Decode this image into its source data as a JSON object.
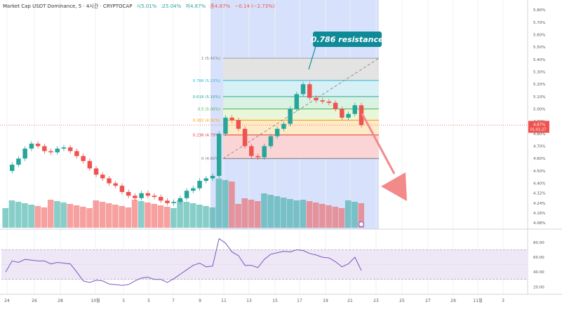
{
  "header": {
    "symbol": "Market Cap USDT Dominance, 5 · 4시간 · CRYPTOCAP",
    "open": "시5.01%",
    "high": "고5.04%",
    "low": "저4.87%",
    "close": "종4.87%",
    "change": "−0.14 (−2.73%)"
  },
  "annotation": {
    "label": "0.786 resistance",
    "color": "#0f8a97"
  },
  "price_tag": {
    "value": "4.87%",
    "countdown": "01:01:27",
    "color": "#ef5350"
  },
  "colors": {
    "up": "#26a69a",
    "down": "#ef5350",
    "rsi_line": "#7e57c2",
    "highlight": "#b7c9f7",
    "arrow": "#f28a8a"
  },
  "chart_data": {
    "type": "candlestick",
    "title": "Market Cap USDT Dominance, 5 · 4시간 · CRYPTOCAP",
    "y_unit": "%",
    "ylim": [
      4.03,
      5.88
    ],
    "y_ticks": [
      "5.80%",
      "5.70%",
      "5.60%",
      "5.50%",
      "5.40%",
      "5.30%",
      "5.20%",
      "5.10%",
      "5.00%",
      "4.90%",
      "4.80%",
      "4.70%",
      "4.60%",
      "4.50%",
      "4.40%",
      "4.32%",
      "4.24%",
      "4.16%",
      "4.08%"
    ],
    "x_ticks": [
      "24",
      "26",
      "28",
      "10월",
      "3",
      "5",
      "7",
      "9",
      "11",
      "13",
      "15",
      "17",
      "19",
      "21",
      "23",
      "25",
      "27",
      "29",
      "11월",
      "3"
    ],
    "fib_levels": [
      {
        "label": "1 (5.41%)",
        "price": 5.41,
        "line": "#9e9e9e",
        "fill": "#e3e3e3",
        "text": "#787878"
      },
      {
        "label": "0.786 (5.23%)",
        "price": 5.23,
        "line": "#2cb5d6",
        "fill": "#d6f0f5",
        "text": "#2cb5d6"
      },
      {
        "label": "0.618 (5.10%)",
        "price": 5.1,
        "line": "#26a69a",
        "fill": "#d9f2e2",
        "text": "#26a69a"
      },
      {
        "label": "0.5 (5.00%)",
        "price": 5.0,
        "line": "#4caf50",
        "fill": "#eaf6d9",
        "text": "#4caf50"
      },
      {
        "label": "0.382 (4.91%)",
        "price": 4.91,
        "line": "#ff9800",
        "fill": "#fdebc8",
        "text": "#ff9800"
      },
      {
        "label": "0.236 (4.79%)",
        "price": 4.79,
        "line": "#e53935",
        "fill": "#fbd5d5",
        "text": "#e53935"
      },
      {
        "label": "0 (4.60%)",
        "price": 4.6,
        "line": "#787878",
        "fill": "",
        "text": "#787878"
      }
    ],
    "price_path": [
      4.5,
      4.55,
      4.6,
      4.68,
      4.72,
      4.7,
      4.66,
      4.65,
      4.68,
      4.69,
      4.66,
      4.62,
      4.58,
      4.52,
      4.47,
      4.44,
      4.4,
      4.38,
      4.33,
      4.3,
      4.28,
      4.32,
      4.3,
      4.29,
      4.26,
      4.24,
      4.25,
      4.28,
      4.34,
      4.36,
      4.42,
      4.44,
      4.46,
      4.8,
      4.93,
      4.91,
      4.84,
      4.7,
      4.62,
      4.61,
      4.7,
      4.78,
      4.84,
      4.88,
      5.0,
      5.12,
      5.2,
      5.09,
      5.07,
      5.06,
      5.05,
      5.0,
      4.93,
      4.96,
      5.03,
      4.87
    ],
    "series": [
      {
        "name": "RSI",
        "type": "line",
        "values": [
          40,
          55,
          53,
          57,
          56,
          55,
          55,
          51,
          53,
          52,
          51,
          40,
          28,
          26,
          29,
          28,
          24,
          23,
          22,
          23,
          28,
          32,
          33,
          30,
          30,
          26,
          31,
          37,
          43,
          49,
          52,
          47,
          48,
          85,
          79,
          67,
          62,
          49,
          49,
          46,
          57,
          64,
          66,
          68,
          67,
          70,
          69,
          65,
          63,
          60,
          59,
          54,
          47,
          51,
          60,
          42
        ]
      }
    ],
    "rsi_ylim": [
      10,
      95
    ],
    "rsi_ticks": [
      "80.00",
      "60.00",
      "40.00",
      "20.00"
    ]
  }
}
